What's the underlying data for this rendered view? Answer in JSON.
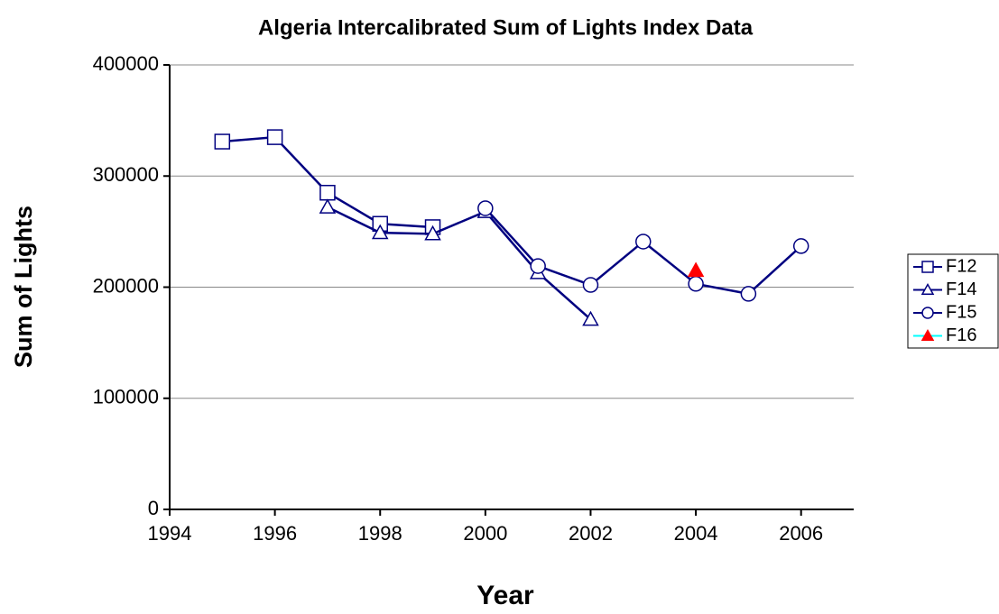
{
  "chart_data": {
    "type": "line",
    "title": "Algeria Intercalibrated Sum of Lights Index Data",
    "xlabel": "Year",
    "ylabel": "Sum of Lights",
    "x": [
      1995,
      1996,
      1997,
      1998,
      1999,
      2000,
      2001,
      2002,
      2003,
      2004,
      2005,
      2006
    ],
    "series": [
      {
        "name": "F12",
        "color": "#000080",
        "marker": "square",
        "marker_color": "#000080",
        "values": [
          331000,
          335000,
          285000,
          257000,
          254000,
          null,
          null,
          null,
          null,
          null,
          null,
          null
        ]
      },
      {
        "name": "F14",
        "color": "#000080",
        "marker": "triangle",
        "marker_color": "#000080",
        "values": [
          null,
          null,
          272000,
          249000,
          248000,
          268000,
          213000,
          171000,
          null,
          null,
          null,
          null
        ]
      },
      {
        "name": "F15",
        "color": "#000080",
        "marker": "circle",
        "marker_color": "#000080",
        "values": [
          null,
          null,
          null,
          null,
          null,
          271000,
          219000,
          202000,
          241000,
          203000,
          194000,
          237000
        ]
      },
      {
        "name": "F16",
        "color": "#00ffff",
        "marker": "filled-triangle",
        "marker_color": "#ff0000",
        "values": [
          null,
          null,
          null,
          null,
          null,
          null,
          null,
          null,
          null,
          215000,
          null,
          null
        ]
      }
    ],
    "xlim": [
      1994,
      2007
    ],
    "xticks": [
      1994,
      1996,
      1998,
      2000,
      2002,
      2004,
      2006
    ],
    "ylim": [
      0,
      400000
    ],
    "yticks": [
      0,
      100000,
      200000,
      300000,
      400000
    ],
    "grid": true,
    "legend": "right"
  }
}
